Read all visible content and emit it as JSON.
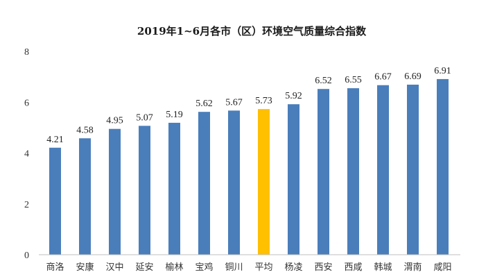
{
  "chart_data": {
    "type": "bar",
    "title": "2019年1~6月各市（区）环境空气质量综合指数",
    "xlabel": "",
    "ylabel": "",
    "categories": [
      "商洛",
      "安康",
      "汉中",
      "延安",
      "榆林",
      "宝鸡",
      "铜川",
      "平均",
      "杨凌",
      "西安",
      "西咸",
      "韩城",
      "渭南",
      "咸阳"
    ],
    "values": [
      4.21,
      4.58,
      4.95,
      5.07,
      5.19,
      5.62,
      5.67,
      5.73,
      5.92,
      6.52,
      6.55,
      6.67,
      6.69,
      6.91
    ],
    "data_labels": [
      "4.21",
      "4.58",
      "4.95",
      "5.07",
      "5.19",
      "5.62",
      "5.67",
      "5.73",
      "5.92",
      "6.52",
      "6.55",
      "6.67",
      "6.69",
      "6.91"
    ],
    "ylim": [
      0,
      8
    ],
    "yticks": [
      0,
      2,
      4,
      6,
      8
    ],
    "ytick_labels": [
      "0",
      "2",
      "4",
      "6",
      "8"
    ],
    "grid": false,
    "legend": "none",
    "colors": {
      "bar": "#4a7ebb",
      "highlight": "#ffc000",
      "highlight_category": "平均"
    }
  }
}
